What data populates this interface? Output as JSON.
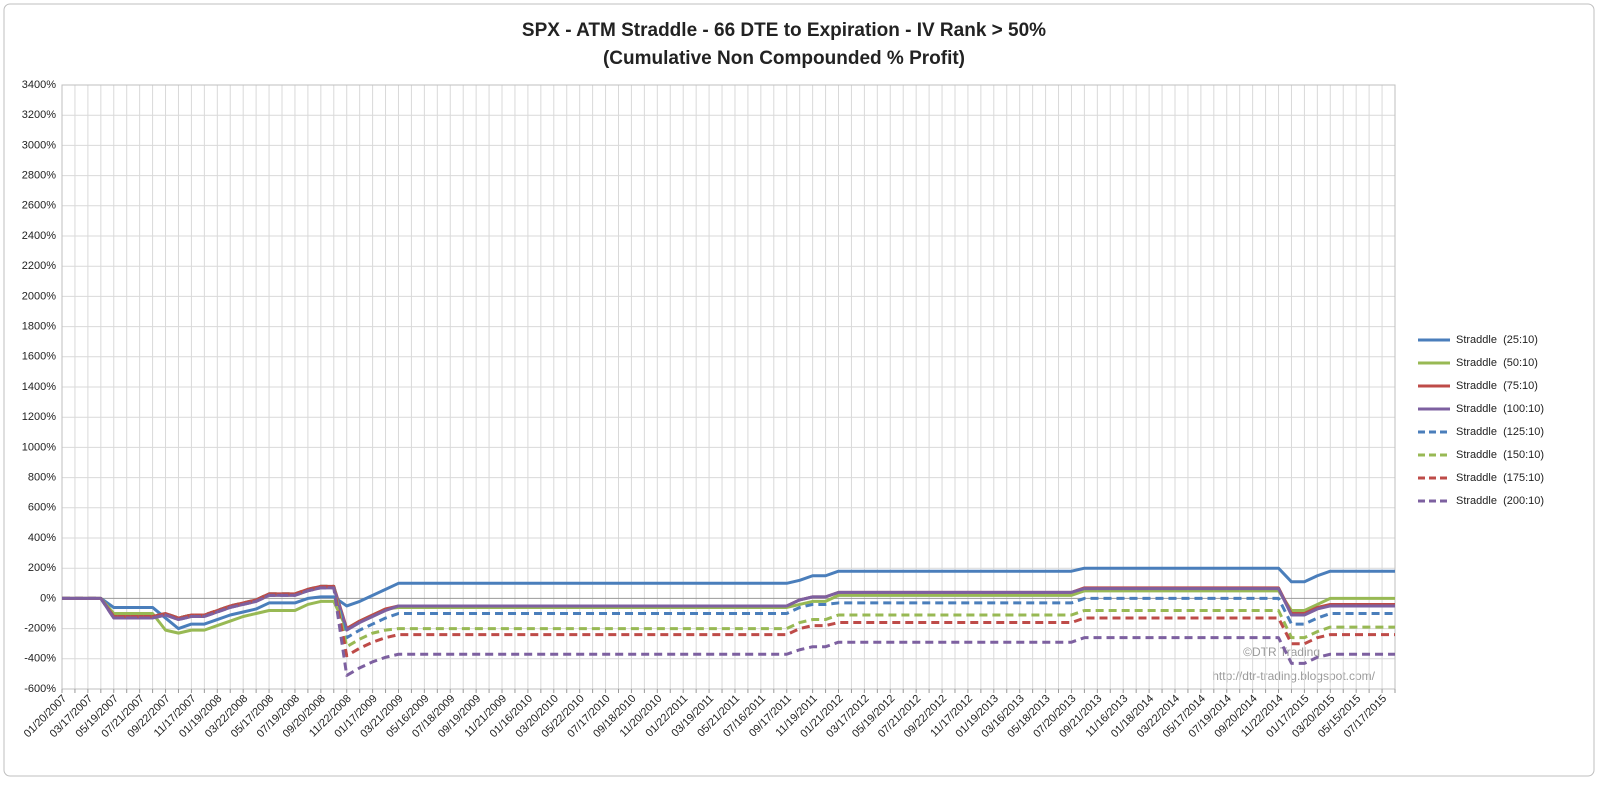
{
  "chart_data": {
    "type": "line",
    "title": "SPX - ATM Straddle - 66 DTE to Expiration - IV Rank > 50%",
    "subtitle": "(Cumulative Non Compounded % Profit)",
    "annotations": [
      "©DTR Trading",
      "http://dtr-trading.blogspot.com/"
    ],
    "categories": [
      "01/20/2007",
      null,
      "03/17/2007",
      null,
      "05/19/2007",
      null,
      "07/21/2007",
      null,
      "09/22/2007",
      null,
      "11/17/2007",
      null,
      "01/19/2008",
      null,
      "03/22/2008",
      null,
      "05/17/2008",
      null,
      "07/19/2008",
      null,
      "09/20/2008",
      null,
      "11/22/2008",
      null,
      "01/17/2009",
      null,
      "03/21/2009",
      null,
      "05/16/2009",
      null,
      "07/18/2009",
      null,
      "09/19/2009",
      null,
      "11/21/2009",
      null,
      "01/16/2010",
      null,
      "03/20/2010",
      null,
      "05/22/2010",
      null,
      "07/17/2010",
      null,
      "09/18/2010",
      null,
      "11/20/2010",
      null,
      "01/22/2011",
      null,
      "03/19/2011",
      null,
      "05/21/2011",
      null,
      "07/16/2011",
      null,
      "09/17/2011",
      null,
      "11/19/2011",
      null,
      "01/21/2012",
      null,
      "03/17/2012",
      null,
      "05/19/2012",
      null,
      "07/21/2012",
      null,
      "09/22/2012",
      null,
      "11/17/2012",
      null,
      "01/19/2013",
      null,
      "03/16/2013",
      null,
      "05/18/2013",
      null,
      "07/20/2013",
      null,
      "09/21/2013",
      null,
      "11/16/2013",
      null,
      "01/18/2014",
      null,
      "03/22/2014",
      null,
      "05/17/2014",
      null,
      "07/19/2014",
      null,
      "09/20/2014",
      null,
      "11/22/2014",
      null,
      "01/17/2015",
      null,
      "03/20/2015",
      null,
      "05/15/2015",
      null,
      "07/17/2015",
      null
    ],
    "series": [
      {
        "name": "Straddle  (25:10)",
        "color": "#4a7ebb",
        "dashed": false,
        "values": [
          0,
          0,
          0,
          0,
          -60,
          -60,
          -60,
          -60,
          -130,
          -200,
          -170,
          -170,
          -140,
          -110,
          -90,
          -70,
          -30,
          -30,
          -30,
          0,
          10,
          10,
          -50,
          -20,
          20,
          60,
          100,
          100,
          100,
          100,
          100,
          100,
          100,
          100,
          100,
          100,
          100,
          100,
          100,
          100,
          100,
          100,
          100,
          100,
          100,
          100,
          100,
          100,
          100,
          100,
          100,
          100,
          100,
          100,
          100,
          100,
          100,
          120,
          150,
          150,
          180,
          180,
          180,
          180,
          180,
          180,
          180,
          180,
          180,
          180,
          180,
          180,
          180,
          180,
          180,
          180,
          180,
          180,
          180,
          200,
          200,
          200,
          200,
          200,
          200,
          200,
          200,
          200,
          200,
          200,
          200,
          200,
          200,
          200,
          200,
          110,
          110,
          150,
          180,
          180,
          180,
          180,
          180,
          180
        ]
      },
      {
        "name": "Straddle  (50:10)",
        "color": "#98b954",
        "dashed": false,
        "values": [
          0,
          0,
          0,
          0,
          -100,
          -100,
          -100,
          -100,
          -210,
          -230,
          -210,
          -210,
          -180,
          -150,
          -120,
          -100,
          -80,
          -80,
          -80,
          -40,
          -20,
          -20,
          -200,
          -150,
          -110,
          -70,
          -60,
          -60,
          -60,
          -60,
          -60,
          -60,
          -60,
          -60,
          -60,
          -60,
          -60,
          -60,
          -60,
          -60,
          -60,
          -60,
          -60,
          -60,
          -60,
          -60,
          -60,
          -60,
          -60,
          -60,
          -60,
          -60,
          -60,
          -60,
          -60,
          -60,
          -60,
          -40,
          -20,
          -20,
          20,
          20,
          20,
          20,
          20,
          20,
          20,
          20,
          20,
          20,
          20,
          20,
          20,
          20,
          20,
          20,
          20,
          20,
          20,
          50,
          50,
          50,
          50,
          50,
          50,
          50,
          50,
          50,
          50,
          50,
          50,
          50,
          50,
          50,
          50,
          -80,
          -80,
          -40,
          0,
          0,
          0,
          0,
          0,
          0
        ]
      },
      {
        "name": "Straddle  (75:10)",
        "color": "#be4b48",
        "dashed": false,
        "values": [
          0,
          0,
          0,
          0,
          -120,
          -120,
          -120,
          -120,
          -100,
          -130,
          -110,
          -110,
          -80,
          -50,
          -30,
          -10,
          30,
          30,
          30,
          60,
          80,
          80,
          -200,
          -150,
          -110,
          -70,
          -50,
          -50,
          -50,
          -50,
          -50,
          -50,
          -50,
          -50,
          -50,
          -50,
          -50,
          -50,
          -50,
          -50,
          -50,
          -50,
          -50,
          -50,
          -50,
          -50,
          -50,
          -50,
          -50,
          -50,
          -50,
          -50,
          -50,
          -50,
          -50,
          -50,
          -50,
          -10,
          10,
          10,
          40,
          40,
          40,
          40,
          40,
          40,
          40,
          40,
          40,
          40,
          40,
          40,
          40,
          40,
          40,
          40,
          40,
          40,
          40,
          70,
          70,
          70,
          70,
          70,
          70,
          70,
          70,
          70,
          70,
          70,
          70,
          70,
          70,
          70,
          70,
          -100,
          -100,
          -60,
          -40,
          -40,
          -40,
          -40,
          -40,
          -40
        ]
      },
      {
        "name": "Straddle  (100:10)",
        "color": "#7d60a0",
        "dashed": false,
        "values": [
          0,
          0,
          0,
          0,
          -130,
          -130,
          -130,
          -130,
          -110,
          -140,
          -120,
          -120,
          -90,
          -60,
          -40,
          -20,
          20,
          20,
          20,
          50,
          70,
          70,
          -210,
          -160,
          -120,
          -80,
          -50,
          -50,
          -50,
          -50,
          -50,
          -50,
          -50,
          -50,
          -50,
          -50,
          -50,
          -50,
          -50,
          -50,
          -50,
          -50,
          -50,
          -50,
          -50,
          -50,
          -50,
          -50,
          -50,
          -50,
          -50,
          -50,
          -50,
          -50,
          -50,
          -50,
          -50,
          -10,
          10,
          10,
          40,
          40,
          40,
          40,
          40,
          40,
          40,
          40,
          40,
          40,
          40,
          40,
          40,
          40,
          40,
          40,
          40,
          40,
          40,
          65,
          65,
          65,
          65,
          65,
          65,
          65,
          65,
          65,
          65,
          65,
          65,
          65,
          65,
          65,
          65,
          -110,
          -110,
          -70,
          -50,
          -50,
          -50,
          -50,
          -50,
          -50
        ]
      },
      {
        "name": "Straddle  (125:10)",
        "color": "#4a7ebb",
        "dashed": true,
        "values": [
          0,
          0,
          0,
          0,
          -120,
          -120,
          -120,
          -120,
          -100,
          -130,
          -110,
          -110,
          -80,
          -50,
          -30,
          -10,
          30,
          30,
          30,
          60,
          80,
          80,
          -260,
          -210,
          -170,
          -130,
          -100,
          -100,
          -100,
          -100,
          -100,
          -100,
          -100,
          -100,
          -100,
          -100,
          -100,
          -100,
          -100,
          -100,
          -100,
          -100,
          -100,
          -100,
          -100,
          -100,
          -100,
          -100,
          -100,
          -100,
          -100,
          -100,
          -100,
          -100,
          -100,
          -100,
          -100,
          -60,
          -40,
          -40,
          -30,
          -30,
          -30,
          -30,
          -30,
          -30,
          -30,
          -30,
          -30,
          -30,
          -30,
          -30,
          -30,
          -30,
          -30,
          -30,
          -30,
          -30,
          -30,
          0,
          0,
          0,
          0,
          0,
          0,
          0,
          0,
          0,
          0,
          0,
          0,
          0,
          0,
          0,
          0,
          -170,
          -170,
          -130,
          -100,
          -100,
          -100,
          -100,
          -100,
          -100
        ]
      },
      {
        "name": "Straddle  (150:10)",
        "color": "#98b954",
        "dashed": true,
        "values": [
          0,
          0,
          0,
          0,
          -120,
          -120,
          -120,
          -120,
          -100,
          -130,
          -110,
          -110,
          -80,
          -50,
          -30,
          -10,
          30,
          30,
          30,
          60,
          80,
          80,
          -320,
          -270,
          -230,
          -210,
          -200,
          -200,
          -200,
          -200,
          -200,
          -200,
          -200,
          -200,
          -200,
          -200,
          -200,
          -200,
          -200,
          -200,
          -200,
          -200,
          -200,
          -200,
          -200,
          -200,
          -200,
          -200,
          -200,
          -200,
          -200,
          -200,
          -200,
          -200,
          -200,
          -200,
          -200,
          -160,
          -140,
          -140,
          -110,
          -110,
          -110,
          -110,
          -110,
          -110,
          -110,
          -110,
          -110,
          -110,
          -110,
          -110,
          -110,
          -110,
          -110,
          -110,
          -110,
          -110,
          -110,
          -80,
          -80,
          -80,
          -80,
          -80,
          -80,
          -80,
          -80,
          -80,
          -80,
          -80,
          -80,
          -80,
          -80,
          -80,
          -80,
          -260,
          -260,
          -220,
          -190,
          -190,
          -190,
          -190,
          -190,
          -190
        ]
      },
      {
        "name": "Straddle  (175:10)",
        "color": "#be4b48",
        "dashed": true,
        "values": [
          0,
          0,
          0,
          0,
          -120,
          -120,
          -120,
          -120,
          -100,
          -130,
          -110,
          -110,
          -80,
          -50,
          -30,
          -10,
          30,
          30,
          30,
          60,
          80,
          80,
          -380,
          -330,
          -290,
          -260,
          -240,
          -240,
          -240,
          -240,
          -240,
          -240,
          -240,
          -240,
          -240,
          -240,
          -240,
          -240,
          -240,
          -240,
          -240,
          -240,
          -240,
          -240,
          -240,
          -240,
          -240,
          -240,
          -240,
          -240,
          -240,
          -240,
          -240,
          -240,
          -240,
          -240,
          -240,
          -200,
          -180,
          -180,
          -160,
          -160,
          -160,
          -160,
          -160,
          -160,
          -160,
          -160,
          -160,
          -160,
          -160,
          -160,
          -160,
          -160,
          -160,
          -160,
          -160,
          -160,
          -160,
          -130,
          -130,
          -130,
          -130,
          -130,
          -130,
          -130,
          -130,
          -130,
          -130,
          -130,
          -130,
          -130,
          -130,
          -130,
          -130,
          -300,
          -300,
          -260,
          -240,
          -240,
          -240,
          -240,
          -240,
          -240
        ]
      },
      {
        "name": "Straddle  (200:10)",
        "color": "#7d60a0",
        "dashed": true,
        "values": [
          0,
          0,
          0,
          0,
          -130,
          -130,
          -130,
          -130,
          -110,
          -140,
          -120,
          -120,
          -90,
          -60,
          -40,
          -20,
          20,
          20,
          20,
          50,
          70,
          70,
          -510,
          -460,
          -420,
          -390,
          -370,
          -370,
          -370,
          -370,
          -370,
          -370,
          -370,
          -370,
          -370,
          -370,
          -370,
          -370,
          -370,
          -370,
          -370,
          -370,
          -370,
          -370,
          -370,
          -370,
          -370,
          -370,
          -370,
          -370,
          -370,
          -370,
          -370,
          -370,
          -370,
          -370,
          -370,
          -340,
          -320,
          -320,
          -290,
          -290,
          -290,
          -290,
          -290,
          -290,
          -290,
          -290,
          -290,
          -290,
          -290,
          -290,
          -290,
          -290,
          -290,
          -290,
          -290,
          -290,
          -290,
          -260,
          -260,
          -260,
          -260,
          -260,
          -260,
          -260,
          -260,
          -260,
          -260,
          -260,
          -260,
          -260,
          -260,
          -260,
          -260,
          -430,
          -430,
          -390,
          -370,
          -370,
          -370,
          -370,
          -370,
          -370
        ]
      }
    ],
    "ylim": [
      -600,
      3400
    ],
    "yticks": [
      {
        "value": -600,
        "label": "-600%"
      },
      {
        "value": -400,
        "label": "-400%"
      },
      {
        "value": -200,
        "label": "-200%"
      },
      {
        "value": 0,
        "label": "0%"
      },
      {
        "value": 200,
        "label": "200%"
      },
      {
        "value": 400,
        "label": "400%"
      },
      {
        "value": 600,
        "label": "600%"
      },
      {
        "value": 800,
        "label": "800%"
      },
      {
        "value": 1000,
        "label": "1000%"
      },
      {
        "value": 1200,
        "label": "1200%"
      },
      {
        "value": 1400,
        "label": "1400%"
      },
      {
        "value": 1600,
        "label": "1600%"
      },
      {
        "value": 1800,
        "label": "1800%"
      },
      {
        "value": 2000,
        "label": "2000%"
      },
      {
        "value": 2200,
        "label": "2200%"
      },
      {
        "value": 2400,
        "label": "2400%"
      },
      {
        "value": 2600,
        "label": "2600%"
      },
      {
        "value": 2800,
        "label": "2800%"
      },
      {
        "value": 3000,
        "label": "3000%"
      },
      {
        "value": 3200,
        "label": "3200%"
      },
      {
        "value": 3400,
        "label": "3400%"
      }
    ],
    "grid": true,
    "legend": "right"
  }
}
